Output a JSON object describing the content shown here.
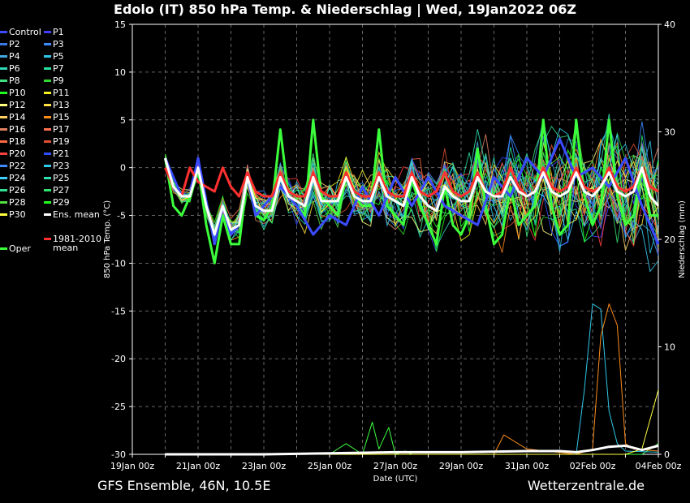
{
  "chart_data": {
    "type": "line",
    "title": "Edolo  (IT)  850 hPa Temp. & Niederschlag | Wed, 19Jan2022 06Z",
    "ylabel": "850 hPa Temp. (°C)",
    "ylabel_right": "Niederschlag (mm)",
    "xlabel": "Date (UTC)",
    "ylim": [
      -30,
      15
    ],
    "ylim_right": [
      0,
      40
    ],
    "yticks": [
      15,
      10,
      5,
      0,
      -5,
      -10,
      -15,
      -20,
      -25,
      -30
    ],
    "yticks_right": [
      40,
      30,
      20,
      10,
      0
    ],
    "xlim": [
      0,
      16
    ],
    "xticks": [
      {
        "pos": 0,
        "label": "19Jan 00z"
      },
      {
        "pos": 2,
        "label": "21Jan 00z"
      },
      {
        "pos": 4,
        "label": "23Jan 00z"
      },
      {
        "pos": 6,
        "label": "25Jan 00z"
      },
      {
        "pos": 8,
        "label": "27Jan 00z"
      },
      {
        "pos": 10,
        "label": "29Jan 00z"
      },
      {
        "pos": 12,
        "label": "31Jan 00z"
      },
      {
        "pos": 14,
        "label": "02Feb 00z"
      },
      {
        "pos": 16,
        "label": "04Feb 00z"
      }
    ],
    "grid": true,
    "series": [
      {
        "name": "Control",
        "color": "#3b4bff",
        "width": 3,
        "axis": "left",
        "x": [
          1.0,
          1.5,
          1.75,
          2.0,
          2.5,
          2.75,
          3.0,
          3.25,
          3.5,
          3.75,
          4.0,
          4.5,
          5.0,
          5.5,
          6.0,
          6.5,
          7.0,
          7.5,
          8.0,
          8.5,
          9.0,
          9.5,
          10.0,
          10.5,
          11.0,
          11.5,
          12.0,
          12.5,
          13.0,
          13.5,
          14.0,
          14.5,
          15.0,
          15.5,
          16.0
        ],
        "y": [
          1,
          -3,
          -3,
          1,
          -8,
          -4,
          -7,
          -6,
          -1,
          -5,
          -4,
          -2,
          -4,
          -7,
          -5,
          -6,
          -2,
          -5,
          -1,
          -4,
          -1,
          -4,
          -5,
          -6,
          -1,
          -3,
          1,
          -1,
          3,
          -1,
          0,
          -2,
          1,
          -4,
          -8
        ]
      },
      {
        "name": "Ens. mean",
        "color": "#ffffff",
        "width": 3,
        "axis": "left",
        "x": [
          1.0,
          1.25,
          1.5,
          1.75,
          2.0,
          2.25,
          2.5,
          2.75,
          3.0,
          3.25,
          3.5,
          3.75,
          4.0,
          4.25,
          4.5,
          4.75,
          5.0,
          5.25,
          5.5,
          5.75,
          6.0,
          6.25,
          6.5,
          6.75,
          7.0,
          7.25,
          7.5,
          7.75,
          8.0,
          8.25,
          8.5,
          8.75,
          9.0,
          9.25,
          9.5,
          9.75,
          10.0,
          10.25,
          10.5,
          10.75,
          11.0,
          11.25,
          11.5,
          11.75,
          12.0,
          12.25,
          12.5,
          12.75,
          13.0,
          13.25,
          13.5,
          13.75,
          14.0,
          14.25,
          14.5,
          14.75,
          15.0,
          15.25,
          15.5,
          15.75,
          16.0
        ],
        "y": [
          1,
          -2,
          -3,
          -3,
          0,
          -4,
          -7,
          -4,
          -6.5,
          -6,
          -1,
          -4,
          -4.5,
          -4.5,
          -1,
          -3,
          -3.5,
          -4,
          -1,
          -3.5,
          -3.5,
          -3.5,
          -1,
          -3,
          -3.5,
          -3.5,
          -1,
          -3,
          -3.5,
          -4,
          -1,
          -3,
          -4,
          -4.5,
          -2,
          -3,
          -3.5,
          -3.5,
          -1,
          -2.5,
          -3,
          -3,
          -1,
          -2.5,
          -3,
          -2.5,
          -0.5,
          -2.5,
          -3,
          -2.5,
          -0.5,
          -2.5,
          -3,
          -2,
          -0.5,
          -2.5,
          -3,
          -2.5,
          0,
          -3,
          -4
        ]
      },
      {
        "name": "Oper",
        "color": "#3cff3c",
        "width": 3,
        "axis": "left",
        "x": [
          1.0,
          1.25,
          1.5,
          1.75,
          2.0,
          2.25,
          2.5,
          2.75,
          3.0,
          3.25,
          3.5,
          3.75,
          4.0,
          4.25,
          4.5,
          4.75,
          5.0,
          5.25,
          5.5,
          5.75,
          6.0,
          6.25,
          6.5,
          6.75,
          7.0,
          7.25,
          7.5,
          7.75,
          8.0,
          8.25,
          8.5,
          8.75,
          9.0,
          9.25,
          9.5,
          9.75,
          10.0,
          10.25,
          10.5,
          10.75,
          11.0,
          11.25,
          11.5,
          11.75,
          12.0,
          12.25,
          12.5,
          12.75,
          13.0,
          13.25,
          13.5,
          13.75,
          14.0,
          14.25,
          14.5,
          14.75,
          15.0,
          15.25,
          15.5,
          15.75,
          16.0
        ],
        "y": [
          1,
          -4,
          -5,
          -3,
          0,
          -6,
          -10,
          -5,
          -8,
          -8,
          -1,
          -5,
          -5.5,
          -4,
          4,
          -3,
          -4,
          -5,
          5,
          -3,
          -4,
          -5,
          -1,
          -3,
          -4,
          -4,
          4,
          -4,
          -5,
          -6,
          -1,
          -4,
          -6,
          -8,
          -2,
          -6,
          -7,
          -5,
          2,
          -4,
          -8,
          -7,
          -2,
          -6,
          -5,
          -4,
          5,
          -4,
          -7,
          -6,
          5,
          -3,
          -6,
          -4,
          5,
          -3,
          -6,
          -5,
          0,
          -5,
          -5
        ]
      },
      {
        "name": "1981-2010 mean",
        "color": "#ff3030",
        "width": 3,
        "axis": "left",
        "x": [
          1.0,
          1.25,
          1.5,
          1.75,
          2.0,
          2.25,
          2.5,
          2.75,
          3.0,
          3.25,
          3.5,
          3.75,
          4.0,
          4.25,
          4.5,
          4.75,
          5.0,
          5.25,
          5.5,
          5.75,
          6.0,
          6.25,
          6.5,
          6.75,
          7.0,
          7.25,
          7.5,
          7.75,
          8.0,
          8.25,
          8.5,
          8.75,
          9.0,
          9.25,
          9.5,
          9.75,
          10.0,
          10.25,
          10.5,
          10.75,
          11.0,
          11.25,
          11.5,
          11.75,
          12.0,
          12.25,
          12.5,
          12.75,
          13.0,
          13.25,
          13.5,
          13.75,
          14.0,
          14.25,
          14.5,
          14.75,
          15.0,
          15.25,
          15.5,
          15.75,
          16.0
        ],
        "y": [
          0,
          -2,
          -3,
          0,
          -1.5,
          -2,
          -2.5,
          0,
          -2,
          -3,
          -0.5,
          -2.5,
          -3,
          -3,
          -0.5,
          -2.5,
          -3,
          -3,
          -0.5,
          -2.5,
          -3,
          -3,
          -0.5,
          -2.5,
          -3,
          -3,
          -0.5,
          -2.5,
          -3,
          -3,
          -0.5,
          -2.5,
          -3,
          -2.5,
          -0.5,
          -2.5,
          -3,
          -2.5,
          -0.5,
          -2.5,
          -3,
          -2.5,
          0,
          -2,
          -3,
          -2.5,
          0,
          -2,
          -2.5,
          -2,
          0,
          -2,
          -2.5,
          -2,
          0,
          -2,
          -2.5,
          -2,
          0,
          -2,
          -2.5
        ]
      },
      {
        "name": "Oper precip",
        "color": "#3cff3c",
        "width": 1,
        "axis": "right",
        "x": [
          1,
          5,
          6,
          6.5,
          7,
          7.3,
          7.5,
          7.8,
          8,
          8.3,
          8.5,
          9,
          10,
          11,
          12,
          13,
          14,
          14.5,
          15,
          15.5,
          16
        ],
        "y": [
          0,
          0,
          0,
          1,
          0,
          3,
          0.5,
          2.5,
          0,
          0.3,
          0,
          0,
          0,
          0,
          0,
          0,
          0,
          0,
          0,
          0,
          1
        ]
      },
      {
        "name": "Ens. mean precip",
        "color": "#ffffff",
        "width": 3,
        "axis": "right",
        "x": [
          1,
          4,
          6,
          8,
          10,
          12,
          13,
          13.5,
          14,
          14.5,
          15,
          15.5,
          16
        ],
        "y": [
          0,
          0,
          0.1,
          0.2,
          0.2,
          0.3,
          0.3,
          0.2,
          0.4,
          0.7,
          0.8,
          0.4,
          0.8
        ]
      },
      {
        "name": "P23 precip",
        "color": "#30c8e8",
        "width": 1,
        "axis": "right",
        "x": [
          1,
          12,
          13,
          13.5,
          13.75,
          14,
          14.25,
          14.5,
          14.75,
          15,
          16
        ],
        "y": [
          0,
          0,
          0,
          0,
          6,
          14,
          13.5,
          4,
          1,
          0.3,
          0.2
        ]
      },
      {
        "name": "P15 precip",
        "color": "#ff8c1a",
        "width": 1,
        "axis": "right",
        "x": [
          1,
          11,
          11.3,
          12,
          13.5,
          14,
          14.25,
          14.5,
          14.75,
          15,
          15.25,
          16
        ],
        "y": [
          0,
          0,
          1.8,
          0.5,
          0,
          0.5,
          11,
          14,
          12,
          1,
          0.5,
          0.3
        ]
      },
      {
        "name": "P30 precip",
        "color": "#ffff40",
        "width": 1,
        "axis": "right",
        "x": [
          1,
          12,
          15,
          15.5,
          16
        ],
        "y": [
          0,
          0,
          0,
          0.5,
          6
        ]
      }
    ],
    "members": [
      {
        "name": "P1",
        "color": "#4040ff"
      },
      {
        "name": "P2",
        "color": "#3a7ae8"
      },
      {
        "name": "P3",
        "color": "#3c8cff"
      },
      {
        "name": "P4",
        "color": "#40a8e0"
      },
      {
        "name": "P5",
        "color": "#30c8e8"
      },
      {
        "name": "P6",
        "color": "#30d8b8"
      },
      {
        "name": "P7",
        "color": "#28e0a0"
      },
      {
        "name": "P8",
        "color": "#40e080"
      },
      {
        "name": "P9",
        "color": "#30d830"
      },
      {
        "name": "P10",
        "color": "#20ff20"
      },
      {
        "name": "P11",
        "color": "#f0f020"
      },
      {
        "name": "P12",
        "color": "#ffff80"
      },
      {
        "name": "P13",
        "color": "#ffe040"
      },
      {
        "name": "P14",
        "color": "#ffd060"
      },
      {
        "name": "P15",
        "color": "#ff8c1a"
      },
      {
        "name": "P16",
        "color": "#e08060"
      },
      {
        "name": "P17",
        "color": "#ff7050"
      },
      {
        "name": "P18",
        "color": "#ff6a40"
      },
      {
        "name": "P19",
        "color": "#e05030"
      },
      {
        "name": "P20",
        "color": "#ff4040"
      },
      {
        "name": "P21",
        "color": "#3050ff"
      },
      {
        "name": "P22",
        "color": "#3c8cff"
      },
      {
        "name": "P23",
        "color": "#30c8e8"
      },
      {
        "name": "P24",
        "color": "#40d0ff"
      },
      {
        "name": "P25",
        "color": "#30e0b0"
      },
      {
        "name": "P26",
        "color": "#30e090"
      },
      {
        "name": "P27",
        "color": "#30e070"
      },
      {
        "name": "P28",
        "color": "#50e040"
      },
      {
        "name": "P29",
        "color": "#20ff20"
      },
      {
        "name": "P30",
        "color": "#ffff40"
      }
    ]
  },
  "legend": [
    {
      "label": "Control",
      "color": "#3b4bff"
    },
    {
      "label": "P1",
      "color": "#4040ff"
    },
    {
      "label": "P2",
      "color": "#3a7ae8"
    },
    {
      "label": "P3",
      "color": "#3c8cff"
    },
    {
      "label": "P4",
      "color": "#40a8e0"
    },
    {
      "label": "P5",
      "color": "#30c8e8"
    },
    {
      "label": "P6",
      "color": "#30d8b8"
    },
    {
      "label": "P7",
      "color": "#28e0a0"
    },
    {
      "label": "P8",
      "color": "#40e080"
    },
    {
      "label": "P9",
      "color": "#30d830"
    },
    {
      "label": "P10",
      "color": "#20ff20"
    },
    {
      "label": "P11",
      "color": "#f0f020"
    },
    {
      "label": "P12",
      "color": "#ffff80"
    },
    {
      "label": "P13",
      "color": "#ffe040"
    },
    {
      "label": "P14",
      "color": "#ffd060"
    },
    {
      "label": "P15",
      "color": "#ff8c1a"
    },
    {
      "label": "P16",
      "color": "#e08060"
    },
    {
      "label": "P17",
      "color": "#ff7050"
    },
    {
      "label": "P18",
      "color": "#ff6a40"
    },
    {
      "label": "P19",
      "color": "#e05030"
    },
    {
      "label": "P20",
      "color": "#ff4040"
    },
    {
      "label": "P21",
      "color": "#3050ff"
    },
    {
      "label": "P22",
      "color": "#3c8cff"
    },
    {
      "label": "P23",
      "color": "#30c8e8"
    },
    {
      "label": "P24",
      "color": "#40d0ff"
    },
    {
      "label": "P25",
      "color": "#30e0b0"
    },
    {
      "label": "P26",
      "color": "#30e090"
    },
    {
      "label": "P27",
      "color": "#30e070"
    },
    {
      "label": "P28",
      "color": "#50e040"
    },
    {
      "label": "P29",
      "color": "#20ff20"
    },
    {
      "label": "P30",
      "color": "#ffff40"
    },
    {
      "label": "Ens. mean",
      "color": "#ffffff"
    },
    {
      "label": "1981-2010",
      "label2": "mean",
      "color": "#ff3030"
    },
    {
      "label": "Oper",
      "color": "#3cff3c"
    }
  ],
  "footer": {
    "left": "GFS Ensemble, 46N, 10.5E",
    "right": "Wetterzentrale.de"
  }
}
